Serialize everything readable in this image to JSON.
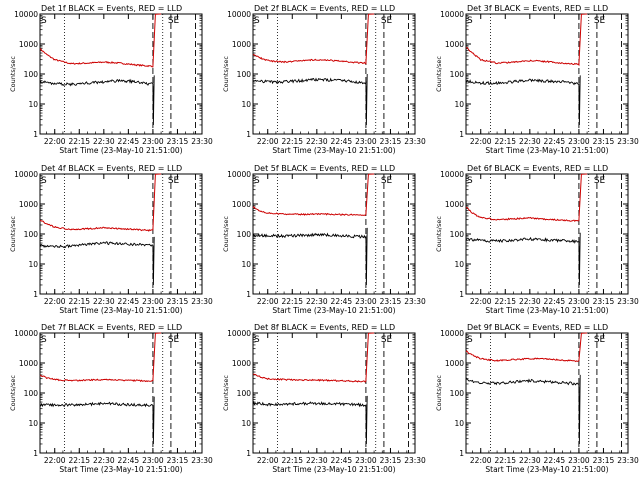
{
  "chart_data": [
    {
      "type": "line",
      "title": "Det 1f BLACK = Events, RED = LLD",
      "ylabel": "Counts/sec",
      "xlabel": "Start Time (23-May-10 21:51:00)",
      "yscale": "log",
      "ylim": [
        1,
        10000
      ],
      "xlim": [
        "21:51",
        "23:30"
      ],
      "x_ticks": [
        "22:00",
        "22:15",
        "22:30",
        "22:45",
        "23:00",
        "23:15",
        "23:30"
      ],
      "y_ticks": [
        "1",
        "10",
        "100",
        "1000",
        "10000"
      ],
      "markers": {
        "S": "21:51",
        "SE": "23:14",
        "dotted": [
          "22:06",
          "23:06"
        ],
        "dashed": [
          "23:00",
          "23:11",
          "23:26"
        ]
      },
      "series": [
        {
          "color": "#cc0000",
          "role": "LLD",
          "x": [
            "21:51",
            "21:55",
            "22:00",
            "22:10",
            "22:20",
            "22:30",
            "22:40",
            "22:50",
            "23:00"
          ],
          "y": [
            700,
            450,
            300,
            220,
            230,
            250,
            230,
            200,
            180
          ]
        },
        {
          "color": "#000000",
          "role": "Events",
          "x": [
            "21:51",
            "21:55",
            "22:00",
            "22:10",
            "22:20",
            "22:30",
            "22:40",
            "22:50",
            "23:00"
          ],
          "y": [
            55,
            52,
            48,
            45,
            50,
            55,
            60,
            55,
            45
          ]
        }
      ],
      "flare": {
        "red_peak": 10000,
        "black_dip": 2
      }
    },
    {
      "type": "line",
      "title": "Det 2f BLACK = Events, RED = LLD",
      "ylabel": "Counts/sec",
      "xlabel": "Start Time (23-May-10 21:51:00)",
      "yscale": "log",
      "ylim": [
        1,
        10000
      ],
      "xlim": [
        "21:51",
        "23:30"
      ],
      "x_ticks": [
        "22:00",
        "22:15",
        "22:30",
        "22:45",
        "23:00",
        "23:15",
        "23:30"
      ],
      "y_ticks": [
        "1",
        "10",
        "100",
        "1000",
        "10000"
      ],
      "markers": {
        "S": "21:51",
        "SE": "23:14",
        "dotted": [
          "22:06",
          "23:06"
        ],
        "dashed": [
          "23:00",
          "23:11",
          "23:26"
        ]
      },
      "series": [
        {
          "color": "#cc0000",
          "role": "LLD",
          "x": [
            "21:51",
            "21:55",
            "22:00",
            "22:10",
            "22:20",
            "22:30",
            "22:40",
            "22:50",
            "23:00"
          ],
          "y": [
            450,
            350,
            280,
            250,
            280,
            300,
            280,
            250,
            230
          ]
        },
        {
          "color": "#000000",
          "role": "Events",
          "x": [
            "21:51",
            "21:55",
            "22:00",
            "22:10",
            "22:20",
            "22:30",
            "22:40",
            "22:50",
            "23:00"
          ],
          "y": [
            60,
            58,
            55,
            55,
            60,
            65,
            62,
            58,
            50
          ]
        }
      ],
      "flare": {
        "red_peak": 10000,
        "black_dip": 2
      }
    },
    {
      "type": "line",
      "title": "Det 3f BLACK = Events, RED = LLD",
      "ylabel": "Counts/sec",
      "xlabel": "Start Time (23-May-10 21:51:00)",
      "yscale": "log",
      "ylim": [
        1,
        10000
      ],
      "xlim": [
        "21:51",
        "23:30"
      ],
      "x_ticks": [
        "22:00",
        "22:15",
        "22:30",
        "22:45",
        "23:00",
        "23:15",
        "23:30"
      ],
      "y_ticks": [
        "1",
        "10",
        "100",
        "1000",
        "10000"
      ],
      "markers": {
        "S": "21:51",
        "SE": "23:14",
        "dotted": [
          "22:06",
          "23:06"
        ],
        "dashed": [
          "23:00",
          "23:11",
          "23:26"
        ]
      },
      "series": [
        {
          "color": "#cc0000",
          "role": "LLD",
          "x": [
            "21:51",
            "21:55",
            "22:00",
            "22:10",
            "22:20",
            "22:30",
            "22:40",
            "22:50",
            "23:00"
          ],
          "y": [
            800,
            500,
            300,
            230,
            250,
            280,
            260,
            230,
            210
          ]
        },
        {
          "color": "#000000",
          "role": "Events",
          "x": [
            "21:51",
            "21:55",
            "22:00",
            "22:10",
            "22:20",
            "22:30",
            "22:40",
            "22:50",
            "23:00"
          ],
          "y": [
            60,
            55,
            50,
            50,
            55,
            62,
            58,
            55,
            45
          ]
        }
      ],
      "flare": {
        "red_peak": 10000,
        "black_dip": 2
      }
    },
    {
      "type": "line",
      "title": "Det 4f BLACK = Events, RED = LLD",
      "ylabel": "Counts/sec",
      "xlabel": "Start Time (23-May-10 21:51:00)",
      "yscale": "log",
      "ylim": [
        1,
        10000
      ],
      "xlim": [
        "21:51",
        "23:30"
      ],
      "x_ticks": [
        "22:00",
        "22:15",
        "22:30",
        "22:45",
        "23:00",
        "23:15",
        "23:30"
      ],
      "y_ticks": [
        "1",
        "10",
        "100",
        "1000",
        "10000"
      ],
      "markers": {
        "S": "21:51",
        "SE": "23:14",
        "dotted": [
          "22:06",
          "23:06"
        ],
        "dashed": [
          "23:00",
          "23:11",
          "23:26"
        ]
      },
      "series": [
        {
          "color": "#cc0000",
          "role": "LLD",
          "x": [
            "21:51",
            "21:55",
            "22:00",
            "22:10",
            "22:20",
            "22:30",
            "22:40",
            "22:50",
            "23:00"
          ],
          "y": [
            300,
            220,
            170,
            140,
            150,
            160,
            150,
            140,
            130
          ]
        },
        {
          "color": "#000000",
          "role": "Events",
          "x": [
            "21:51",
            "21:55",
            "22:00",
            "22:10",
            "22:20",
            "22:30",
            "22:40",
            "22:50",
            "23:00"
          ],
          "y": [
            40,
            40,
            38,
            40,
            45,
            50,
            48,
            45,
            40
          ]
        }
      ],
      "flare": {
        "red_peak": 10000,
        "black_dip": 2
      }
    },
    {
      "type": "line",
      "title": "Det 5f BLACK = Events, RED = LLD",
      "ylabel": "Counts/sec",
      "xlabel": "Start Time (23-May-10 21:51:00)",
      "yscale": "log",
      "ylim": [
        1,
        10000
      ],
      "xlim": [
        "21:51",
        "23:30"
      ],
      "x_ticks": [
        "22:00",
        "22:15",
        "22:30",
        "22:45",
        "23:00",
        "23:15",
        "23:30"
      ],
      "y_ticks": [
        "1",
        "10",
        "100",
        "1000",
        "10000"
      ],
      "markers": {
        "S": "21:51",
        "SE": "23:14",
        "dotted": [
          "22:06",
          "23:06"
        ],
        "dashed": [
          "23:00",
          "23:11",
          "23:26"
        ]
      },
      "series": [
        {
          "color": "#cc0000",
          "role": "LLD",
          "x": [
            "21:51",
            "21:55",
            "22:00",
            "22:10",
            "22:20",
            "22:30",
            "22:40",
            "22:50",
            "23:00"
          ],
          "y": [
            800,
            600,
            500,
            460,
            450,
            460,
            450,
            440,
            430
          ]
        },
        {
          "color": "#000000",
          "role": "Events",
          "x": [
            "21:51",
            "21:55",
            "22:00",
            "22:10",
            "22:20",
            "22:30",
            "22:40",
            "22:50",
            "23:00"
          ],
          "y": [
            90,
            90,
            88,
            85,
            90,
            95,
            90,
            85,
            80
          ]
        }
      ],
      "flare": {
        "red_peak": 10000,
        "black_dip": 2
      }
    },
    {
      "type": "line",
      "title": "Det 6f BLACK = Events, RED = LLD",
      "ylabel": "Counts/sec",
      "xlabel": "Start Time (23-May-10 21:51:00)",
      "yscale": "log",
      "ylim": [
        1,
        10000
      ],
      "xlim": [
        "21:51",
        "23:30"
      ],
      "x_ticks": [
        "22:00",
        "22:15",
        "22:30",
        "22:45",
        "23:00",
        "23:15",
        "23:30"
      ],
      "y_ticks": [
        "1",
        "10",
        "100",
        "1000",
        "10000"
      ],
      "markers": {
        "S": "21:51",
        "SE": "23:14",
        "dotted": [
          "22:06",
          "23:06"
        ],
        "dashed": [
          "23:00",
          "23:11",
          "23:26"
        ]
      },
      "series": [
        {
          "color": "#cc0000",
          "role": "LLD",
          "x": [
            "21:51",
            "21:55",
            "22:00",
            "22:10",
            "22:20",
            "22:30",
            "22:40",
            "22:50",
            "23:00"
          ],
          "y": [
            800,
            500,
            350,
            300,
            320,
            340,
            310,
            290,
            270
          ]
        },
        {
          "color": "#000000",
          "role": "Events",
          "x": [
            "21:51",
            "21:55",
            "22:00",
            "22:10",
            "22:20",
            "22:30",
            "22:40",
            "22:50",
            "23:00"
          ],
          "y": [
            70,
            65,
            60,
            58,
            62,
            68,
            64,
            60,
            55
          ]
        }
      ],
      "flare": {
        "red_peak": 10000,
        "black_dip": 2
      }
    },
    {
      "type": "line",
      "title": "Det 7f BLACK = Events, RED = LLD",
      "ylabel": "Counts/sec",
      "xlabel": "Start Time (23-May-10 21:51:00)",
      "yscale": "log",
      "ylim": [
        1,
        10000
      ],
      "xlim": [
        "21:51",
        "23:30"
      ],
      "x_ticks": [
        "22:00",
        "22:15",
        "22:30",
        "22:45",
        "23:00",
        "23:15",
        "23:30"
      ],
      "y_ticks": [
        "1",
        "10",
        "100",
        "1000",
        "10000"
      ],
      "markers": {
        "S": "21:51",
        "SE": "23:14",
        "dotted": [
          "22:06",
          "23:06"
        ],
        "dashed": [
          "23:00",
          "23:11",
          "23:26"
        ]
      },
      "series": [
        {
          "color": "#cc0000",
          "role": "LLD",
          "x": [
            "21:51",
            "21:55",
            "22:00",
            "22:10",
            "22:20",
            "22:30",
            "22:40",
            "22:50",
            "23:00"
          ],
          "y": [
            400,
            320,
            280,
            260,
            270,
            280,
            270,
            260,
            250
          ]
        },
        {
          "color": "#000000",
          "role": "Events",
          "x": [
            "21:51",
            "21:55",
            "22:00",
            "22:10",
            "22:20",
            "22:30",
            "22:40",
            "22:50",
            "23:00"
          ],
          "y": [
            40,
            40,
            40,
            40,
            42,
            45,
            42,
            40,
            38
          ]
        }
      ],
      "flare": {
        "red_peak": 10000,
        "black_dip": 2
      }
    },
    {
      "type": "line",
      "title": "Det 8f BLACK = Events, RED = LLD",
      "ylabel": "Counts/sec",
      "xlabel": "Start Time (23-May-10 21:51:00)",
      "yscale": "log",
      "ylim": [
        1,
        10000
      ],
      "xlim": [
        "21:51",
        "23:30"
      ],
      "x_ticks": [
        "22:00",
        "22:15",
        "22:30",
        "22:45",
        "23:00",
        "23:15",
        "23:30"
      ],
      "y_ticks": [
        "1",
        "10",
        "100",
        "1000",
        "10000"
      ],
      "markers": {
        "S": "21:51",
        "SE": "23:14",
        "dotted": [
          "22:06",
          "23:06"
        ],
        "dashed": [
          "23:00",
          "23:11",
          "23:26"
        ]
      },
      "series": [
        {
          "color": "#cc0000",
          "role": "LLD",
          "x": [
            "21:51",
            "21:55",
            "22:00",
            "22:10",
            "22:20",
            "22:30",
            "22:40",
            "22:50",
            "23:00"
          ],
          "y": [
            450,
            350,
            300,
            280,
            270,
            270,
            260,
            250,
            240
          ]
        },
        {
          "color": "#000000",
          "role": "Events",
          "x": [
            "21:51",
            "21:55",
            "22:00",
            "22:10",
            "22:20",
            "22:30",
            "22:40",
            "22:50",
            "23:00"
          ],
          "y": [
            45,
            45,
            42,
            42,
            45,
            45,
            45,
            42,
            40
          ]
        }
      ],
      "flare": {
        "red_peak": 10000,
        "black_dip": 2
      }
    },
    {
      "type": "line",
      "title": "Det 9f BLACK = Events, RED = LLD",
      "ylabel": "Counts/sec",
      "xlabel": "Start Time (23-May-10 21:51:00)",
      "yscale": "log",
      "ylim": [
        1,
        10000
      ],
      "xlim": [
        "21:51",
        "23:30"
      ],
      "x_ticks": [
        "22:00",
        "22:15",
        "22:30",
        "22:45",
        "23:00",
        "23:15",
        "23:30"
      ],
      "y_ticks": [
        "1",
        "10",
        "100",
        "1000",
        "10000"
      ],
      "markers": {
        "S": "21:51",
        "SE": "23:14",
        "dotted": [
          "22:06",
          "23:06"
        ],
        "dashed": [
          "23:00",
          "23:11",
          "23:26"
        ]
      },
      "series": [
        {
          "color": "#cc0000",
          "role": "LLD",
          "x": [
            "21:51",
            "21:55",
            "22:00",
            "22:10",
            "22:20",
            "22:30",
            "22:40",
            "22:50",
            "23:00"
          ],
          "y": [
            2500,
            1800,
            1400,
            1200,
            1300,
            1400,
            1350,
            1250,
            1150
          ]
        },
        {
          "color": "#000000",
          "role": "Events",
          "x": [
            "21:51",
            "21:55",
            "22:00",
            "22:10",
            "22:20",
            "22:30",
            "22:40",
            "22:50",
            "23:00"
          ],
          "y": [
            300,
            250,
            220,
            210,
            230,
            260,
            240,
            220,
            200
          ]
        }
      ],
      "flare": {
        "red_peak": 10000,
        "black_dip": 2
      }
    }
  ]
}
